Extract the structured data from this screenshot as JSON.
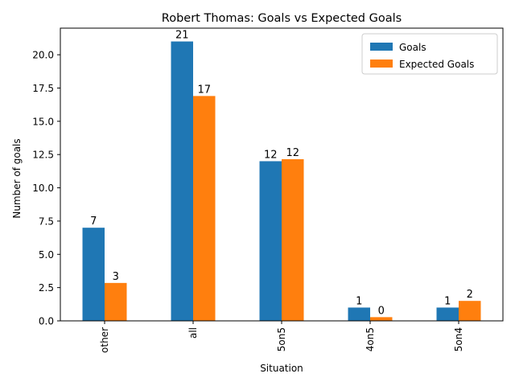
{
  "chart_data": {
    "type": "bar",
    "title": "Robert Thomas: Goals vs Expected Goals",
    "xlabel": "Situation",
    "ylabel": "Number of goals",
    "categories": [
      "other",
      "all",
      "5on5",
      "4on5",
      "5on4"
    ],
    "series": [
      {
        "name": "Goals",
        "color": "#1f77b4",
        "values": [
          7,
          21,
          12,
          1,
          1
        ],
        "labels": [
          "7",
          "21",
          "12",
          "1",
          "1"
        ]
      },
      {
        "name": "Expected Goals",
        "color": "#ff7f0e",
        "values": [
          2.85,
          16.9,
          12.15,
          0.28,
          1.5
        ],
        "labels": [
          "3",
          "17",
          "12",
          "0",
          "2"
        ]
      }
    ],
    "ylim": [
      0,
      22
    ],
    "yticks": [
      0.0,
      2.5,
      5.0,
      7.5,
      10.0,
      12.5,
      15.0,
      17.5,
      20.0
    ],
    "ytick_labels": [
      "0.0",
      "2.5",
      "5.0",
      "7.5",
      "10.0",
      "12.5",
      "15.0",
      "17.5",
      "20.0"
    ],
    "legend_position": "top-right",
    "grid": false
  }
}
